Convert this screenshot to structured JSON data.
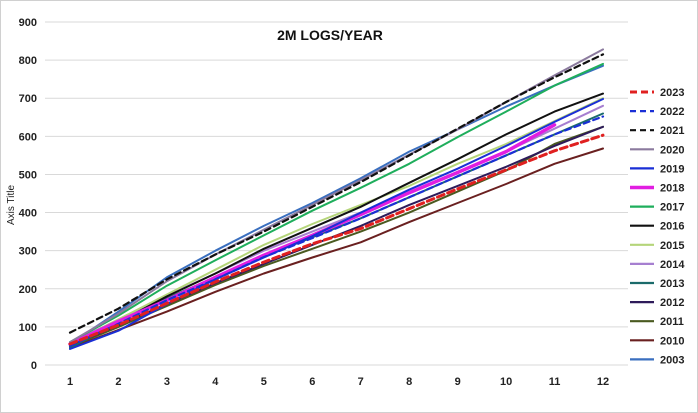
{
  "chart_data": {
    "type": "line",
    "title": "2M LOGS/YEAR",
    "xlabel": "",
    "ylabel": "Axis Title",
    "x": [
      1,
      2,
      3,
      4,
      5,
      6,
      7,
      8,
      9,
      10,
      11,
      12
    ],
    "ylim": [
      0,
      900
    ],
    "yticks": [
      0,
      100,
      200,
      300,
      400,
      500,
      600,
      700,
      800,
      900
    ],
    "grid": "horizontal",
    "legend_position": "right",
    "series": [
      {
        "name": "2023",
        "color": "#e02020",
        "dash": "dash-thick",
        "values": [
          55,
          105,
          162,
          218,
          270,
          318,
          358,
          410,
          462,
          512,
          562,
          603
        ]
      },
      {
        "name": "2022",
        "color": "#1a2fd6",
        "dash": "dash",
        "values": [
          50,
          108,
          170,
          225,
          283,
          333,
          385,
          440,
          495,
          550,
          605,
          652
        ]
      },
      {
        "name": "2021",
        "color": "#111111",
        "dash": "dash",
        "values": [
          85,
          148,
          225,
          290,
          350,
          415,
          480,
          550,
          620,
          690,
          755,
          815
        ]
      },
      {
        "name": "2020",
        "color": "#8b7a9e",
        "dash": "solid",
        "values": [
          60,
          135,
          220,
          290,
          355,
          420,
          485,
          552,
          618,
          690,
          760,
          828
        ]
      },
      {
        "name": "2019",
        "color": "#1a2fd6",
        "dash": "solid",
        "values": [
          42,
          90,
          160,
          225,
          282,
          338,
          400,
          460,
          515,
          575,
          638,
          698
        ]
      },
      {
        "name": "2018",
        "color": "#e11ee1",
        "dash": "solid-thick",
        "values": [
          55,
          115,
          170,
          230,
          288,
          340,
          395,
          452,
          505,
          560,
          630,
          null
        ]
      },
      {
        "name": "2017",
        "color": "#1fae5c",
        "dash": "solid",
        "values": [
          60,
          130,
          208,
          275,
          340,
          405,
          465,
          528,
          598,
          665,
          733,
          790
        ]
      },
      {
        "name": "2016",
        "color": "#111111",
        "dash": "solid",
        "values": [
          52,
          112,
          180,
          240,
          305,
          360,
          415,
          478,
          540,
          605,
          665,
          712
        ]
      },
      {
        "name": "2015",
        "color": "#b5d57a",
        "dash": "solid",
        "values": [
          55,
          120,
          185,
          250,
          315,
          370,
          420,
          470,
          528,
          580,
          640,
          700
        ]
      },
      {
        "name": "2014",
        "color": "#a67fd0",
        "dash": "solid",
        "values": [
          60,
          118,
          182,
          240,
          300,
          350,
          400,
          450,
          505,
          560,
          620,
          680
        ]
      },
      {
        "name": "2013",
        "color": "#1b6b6b",
        "dash": "solid",
        "values": [
          45,
          112,
          175,
          230,
          285,
          335,
          385,
          440,
          495,
          550,
          605,
          660
        ]
      },
      {
        "name": "2012",
        "color": "#2e1b5a",
        "dash": "solid",
        "values": [
          50,
          105,
          160,
          215,
          265,
          315,
          365,
          420,
          470,
          520,
          575,
          625
        ]
      },
      {
        "name": "2011",
        "color": "#4a5a20",
        "dash": "solid",
        "values": [
          48,
          100,
          155,
          210,
          260,
          305,
          350,
          400,
          455,
          510,
          580,
          625
        ]
      },
      {
        "name": "2010",
        "color": "#6a2020",
        "dash": "solid",
        "values": [
          45,
          92,
          140,
          192,
          240,
          282,
          322,
          375,
          425,
          475,
          528,
          568
        ]
      },
      {
        "name": "2003",
        "color": "#3a6fbf",
        "dash": "solid",
        "values": [
          55,
          140,
          230,
          300,
          365,
          425,
          490,
          560,
          618,
          678,
          733,
          785
        ]
      }
    ]
  }
}
